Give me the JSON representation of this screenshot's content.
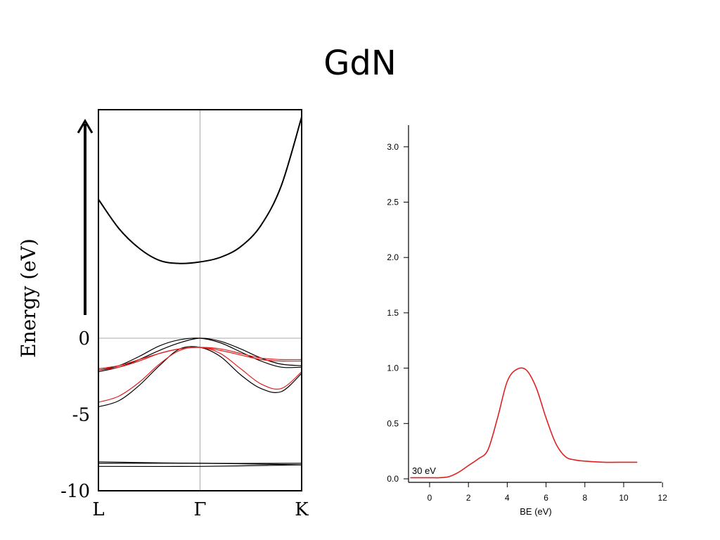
{
  "slide": {
    "title": "GdN"
  },
  "chart_data": [
    {
      "type": "line",
      "name": "band-structure",
      "ylabel": "Energy (eV)",
      "ylim": [
        -10,
        15
      ],
      "y_ticks": [
        0,
        -5,
        -10
      ],
      "y_tick_labels": [
        "0",
        "-5",
        "-10"
      ],
      "x_tick_labels": [
        "L",
        "Γ",
        "K"
      ],
      "arrow": "upward arrow beside energy axis",
      "series": [
        {
          "name": "conduction",
          "color": "#000000",
          "k": [
            0,
            0.1,
            0.2,
            0.3,
            0.4,
            0.5,
            0.6,
            0.7,
            0.8,
            0.9,
            1.0
          ],
          "e": [
            9.1,
            7.2,
            5.9,
            5.1,
            4.9,
            5.0,
            5.3,
            6.0,
            7.4,
            10.0,
            14.5
          ]
        },
        {
          "name": "valence-black-1",
          "color": "#000000",
          "k": [
            0,
            0.1,
            0.2,
            0.3,
            0.4,
            0.5,
            0.6,
            0.7,
            0.8,
            0.9,
            1.0
          ],
          "e": [
            -2.1,
            -1.8,
            -1.2,
            -0.5,
            -0.1,
            0.0,
            -0.3,
            -0.9,
            -1.5,
            -1.9,
            -1.9
          ]
        },
        {
          "name": "valence-black-2",
          "color": "#000000",
          "k": [
            0,
            0.1,
            0.2,
            0.3,
            0.4,
            0.5,
            0.6,
            0.7,
            0.8,
            0.9,
            1.0
          ],
          "e": [
            -2.2,
            -1.9,
            -1.4,
            -0.8,
            -0.3,
            0.0,
            -0.2,
            -0.7,
            -1.3,
            -1.7,
            -1.8
          ]
        },
        {
          "name": "valence-black-3",
          "color": "#000000",
          "k": [
            0,
            0.1,
            0.2,
            0.3,
            0.4,
            0.5,
            0.6,
            0.7,
            0.8,
            0.9,
            1.0
          ],
          "e": [
            -4.5,
            -4.1,
            -3.1,
            -1.8,
            -0.7,
            -0.6,
            -1.2,
            -2.4,
            -3.3,
            -3.5,
            -2.3
          ]
        },
        {
          "name": "valence-red-1",
          "color": "#e02020",
          "k": [
            0,
            0.1,
            0.2,
            0.3,
            0.4,
            0.5,
            0.6,
            0.7,
            0.8,
            0.9,
            1.0
          ],
          "e": [
            -2.0,
            -1.8,
            -1.4,
            -1.0,
            -0.7,
            -0.6,
            -0.7,
            -1.0,
            -1.3,
            -1.4,
            -1.4
          ]
        },
        {
          "name": "valence-red-2",
          "color": "#e02020",
          "k": [
            0,
            0.1,
            0.2,
            0.3,
            0.4,
            0.5,
            0.6,
            0.7,
            0.8,
            0.9,
            1.0
          ],
          "e": [
            -4.2,
            -3.8,
            -2.9,
            -1.7,
            -0.8,
            -0.6,
            -1.0,
            -2.0,
            -3.0,
            -3.3,
            -2.2
          ]
        },
        {
          "name": "valence-red-3",
          "color": "#e02020",
          "k": [
            0,
            0.1,
            0.2,
            0.3,
            0.4,
            0.5,
            0.6,
            0.7,
            0.8,
            0.9,
            1.0
          ],
          "e": [
            -2.1,
            -1.9,
            -1.5,
            -1.0,
            -0.7,
            -0.6,
            -0.8,
            -1.1,
            -1.4,
            -1.5,
            -1.5
          ]
        },
        {
          "name": "flat-1",
          "color": "#000000",
          "k": [
            0,
            0.5,
            1.0
          ],
          "e": [
            -8.1,
            -8.2,
            -8.2
          ]
        },
        {
          "name": "flat-2",
          "color": "#000000",
          "k": [
            0,
            0.5,
            1.0
          ],
          "e": [
            -8.2,
            -8.2,
            -8.3
          ]
        },
        {
          "name": "flat-3",
          "color": "#000000",
          "k": [
            0,
            0.5,
            1.0
          ],
          "e": [
            -8.4,
            -8.4,
            -8.3
          ]
        }
      ]
    },
    {
      "type": "line",
      "name": "photoemission-spectrum",
      "xlabel": "BE (eV)",
      "xlim": [
        -1,
        12
      ],
      "ylim": [
        0,
        3.2
      ],
      "x_ticks": [
        0,
        2,
        4,
        6,
        8,
        10,
        12
      ],
      "y_ticks": [
        0.0,
        0.5,
        1.0,
        1.5,
        2.0,
        2.5,
        3.0
      ],
      "y_tick_labels": [
        "0.0",
        "0.5",
        "1.0",
        "1.5",
        "2.0",
        "2.5",
        "3.0"
      ],
      "annotation": "30 eV",
      "color": "#e02020",
      "x": [
        -1,
        0,
        0.5,
        1.0,
        1.5,
        2.0,
        2.5,
        3.0,
        3.5,
        4.0,
        4.5,
        5.0,
        5.5,
        6.0,
        6.5,
        7.0,
        7.5,
        8.0,
        9.0,
        10.0,
        10.7
      ],
      "y": [
        0.01,
        0.01,
        0.01,
        0.02,
        0.06,
        0.12,
        0.18,
        0.26,
        0.55,
        0.88,
        0.99,
        0.98,
        0.82,
        0.55,
        0.32,
        0.2,
        0.17,
        0.16,
        0.15,
        0.15,
        0.15
      ]
    }
  ]
}
